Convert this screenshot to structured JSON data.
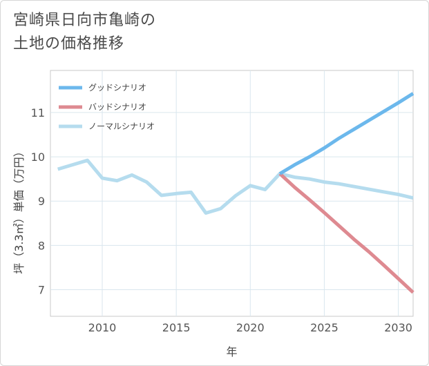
{
  "title": "宮崎県日向市亀崎の\n土地の価格推移",
  "chart_data": {
    "type": "line",
    "xlabel": "年",
    "ylabel": "坪（3.3㎡）単価（万円）",
    "xlim": [
      2006.5,
      2031
    ],
    "ylim": [
      6.4,
      11.95
    ],
    "xticks": [
      2010,
      2015,
      2020,
      2025,
      2030
    ],
    "yticks": [
      7,
      8,
      9,
      10,
      11
    ],
    "grid": true,
    "legend_position": "top-left",
    "series": [
      {
        "name": "グッドシナリオ",
        "color": "#6cb8ec",
        "x": [
          2022,
          2023,
          2024,
          2025,
          2026,
          2027,
          2028,
          2029,
          2030,
          2031
        ],
        "y": [
          9.62,
          9.82,
          10.0,
          10.2,
          10.42,
          10.62,
          10.82,
          11.02,
          11.22,
          11.43
        ]
      },
      {
        "name": "バッドシナリオ",
        "color": "#de8a91",
        "x": [
          2022,
          2023,
          2024,
          2025,
          2026,
          2027,
          2028,
          2029,
          2030,
          2031
        ],
        "y": [
          9.62,
          9.31,
          9.03,
          8.74,
          8.44,
          8.14,
          7.86,
          7.56,
          7.25,
          6.94
        ]
      },
      {
        "name": "ノーマルシナリオ",
        "color": "#b5dcee",
        "x": [
          2007,
          2008,
          2009,
          2010,
          2011,
          2012,
          2013,
          2014,
          2015,
          2016,
          2017,
          2018,
          2019,
          2020,
          2021,
          2022,
          2023,
          2024,
          2025,
          2026,
          2027,
          2028,
          2029,
          2030,
          2031
        ],
        "y": [
          9.72,
          9.82,
          9.92,
          9.52,
          9.46,
          9.59,
          9.43,
          9.13,
          9.17,
          9.2,
          8.73,
          8.83,
          9.12,
          9.35,
          9.26,
          9.62,
          9.54,
          9.5,
          9.43,
          9.39,
          9.33,
          9.27,
          9.21,
          9.15,
          9.07
        ]
      }
    ]
  }
}
